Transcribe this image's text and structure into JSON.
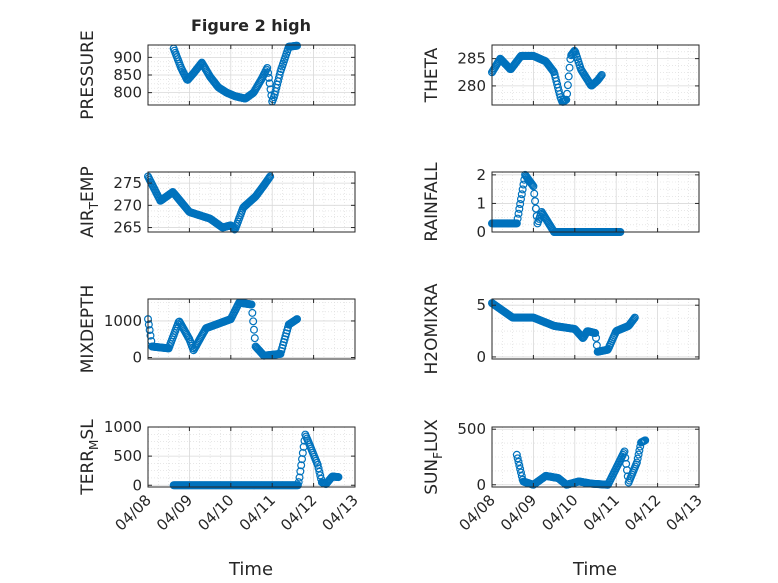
{
  "figure": {
    "title": "Figure 2 high",
    "x_axis_label": "Time",
    "x_tick_labels": [
      "04/08",
      "04/09",
      "04/10",
      "04/11",
      "04/12",
      "04/13"
    ]
  },
  "colors": {
    "marker": "#0072bd",
    "axis": "#262626",
    "grid": "#d9d9d9",
    "background": "#ffffff"
  },
  "chart_data": [
    {
      "type": "scatter",
      "ylabel": "PRESSURE",
      "xlim": [
        0,
        5
      ],
      "ylim": [
        765,
        935
      ],
      "yticks": [
        800,
        850,
        900
      ],
      "grid": true,
      "marker": "circle-open",
      "anchors": [
        [
          0.62,
          925
        ],
        [
          0.8,
          870
        ],
        [
          0.95,
          835
        ],
        [
          1.1,
          855
        ],
        [
          1.3,
          885
        ],
        [
          1.5,
          845
        ],
        [
          1.7,
          815
        ],
        [
          1.9,
          800
        ],
        [
          2.1,
          790
        ],
        [
          2.35,
          783
        ],
        [
          2.55,
          800
        ],
        [
          2.75,
          840
        ],
        [
          2.88,
          870
        ],
        [
          2.93,
          835
        ],
        [
          3.0,
          775
        ],
        [
          3.05,
          790
        ],
        [
          3.2,
          860
        ],
        [
          3.4,
          930
        ],
        [
          3.6,
          933
        ]
      ]
    },
    {
      "type": "scatter",
      "ylabel": "THETA",
      "xlim": [
        0,
        5
      ],
      "ylim": [
        276.5,
        287.5
      ],
      "yticks": [
        280,
        285
      ],
      "grid": true,
      "marker": "circle-open",
      "anchors": [
        [
          0.0,
          282.5
        ],
        [
          0.2,
          285.0
        ],
        [
          0.45,
          283.0
        ],
        [
          0.7,
          285.5
        ],
        [
          1.0,
          285.5
        ],
        [
          1.3,
          284.5
        ],
        [
          1.5,
          282.5
        ],
        [
          1.65,
          278.0
        ],
        [
          1.7,
          277.0
        ],
        [
          1.8,
          277.5
        ],
        [
          1.9,
          285.5
        ],
        [
          2.0,
          286.5
        ],
        [
          2.15,
          283.0
        ],
        [
          2.4,
          280.0
        ],
        [
          2.55,
          281.0
        ],
        [
          2.65,
          282.0
        ]
      ]
    },
    {
      "type": "scatter",
      "ylabel": "AIR_TEMP",
      "xlim": [
        0,
        5
      ],
      "ylim": [
        264,
        277.5
      ],
      "yticks": [
        265,
        270,
        275
      ],
      "grid": true,
      "marker": "circle-open",
      "anchors": [
        [
          0.0,
          276.5
        ],
        [
          0.3,
          271.0
        ],
        [
          0.6,
          273.0
        ],
        [
          1.0,
          268.5
        ],
        [
          1.5,
          267.0
        ],
        [
          1.8,
          265.0
        ],
        [
          2.0,
          265.5
        ],
        [
          2.1,
          264.5
        ],
        [
          2.3,
          269.5
        ],
        [
          2.6,
          272.0
        ],
        [
          2.8,
          274.5
        ],
        [
          2.95,
          276.5
        ]
      ]
    },
    {
      "type": "scatter",
      "ylabel": "RAINFALL",
      "xlim": [
        0,
        5
      ],
      "ylim": [
        0,
        2.1
      ],
      "yticks": [
        0,
        1,
        2
      ],
      "grid": true,
      "marker": "circle-open",
      "anchors": [
        [
          0.0,
          0.3
        ],
        [
          0.6,
          0.3
        ],
        [
          0.8,
          2.0
        ],
        [
          1.0,
          1.6
        ],
        [
          1.1,
          0.3
        ],
        [
          1.2,
          0.7
        ],
        [
          1.5,
          0.0
        ],
        [
          3.1,
          0.0
        ]
      ]
    },
    {
      "type": "scatter",
      "ylabel": "MIXDEPTH",
      "xlim": [
        0,
        5
      ],
      "ylim": [
        -40,
        1600
      ],
      "yticks": [
        0,
        1000
      ],
      "grid": true,
      "marker": "circle-open",
      "anchors": [
        [
          0.0,
          1050
        ],
        [
          0.1,
          300
        ],
        [
          0.5,
          250
        ],
        [
          0.75,
          1000
        ],
        [
          1.0,
          500
        ],
        [
          1.1,
          200
        ],
        [
          1.4,
          800
        ],
        [
          2.0,
          1050
        ],
        [
          2.2,
          1500
        ],
        [
          2.5,
          1450
        ],
        [
          2.6,
          300
        ],
        [
          2.8,
          50
        ],
        [
          3.2,
          100
        ],
        [
          3.4,
          900
        ],
        [
          3.6,
          1050
        ]
      ]
    },
    {
      "type": "scatter",
      "ylabel": "H2OMIXRA",
      "xlim": [
        0,
        5
      ],
      "ylim": [
        -0.2,
        5.6
      ],
      "yticks": [
        0,
        5
      ],
      "grid": true,
      "marker": "circle-open",
      "anchors": [
        [
          0.0,
          5.2
        ],
        [
          0.5,
          3.8
        ],
        [
          1.0,
          3.8
        ],
        [
          1.5,
          3.0
        ],
        [
          2.0,
          2.7
        ],
        [
          2.2,
          1.8
        ],
        [
          2.3,
          2.5
        ],
        [
          2.5,
          2.3
        ],
        [
          2.55,
          0.5
        ],
        [
          2.8,
          0.7
        ],
        [
          3.0,
          2.5
        ],
        [
          3.3,
          3.0
        ],
        [
          3.45,
          3.8
        ]
      ]
    },
    {
      "type": "scatter",
      "ylabel": "TERR_MSL",
      "xlim": [
        0,
        5
      ],
      "ylim": [
        -30,
        1000
      ],
      "yticks": [
        0,
        500,
        1000
      ],
      "grid": true,
      "marker": "circle-open",
      "anchors": [
        [
          0.62,
          0
        ],
        [
          3.62,
          0
        ],
        [
          3.65,
          80
        ],
        [
          3.8,
          870
        ],
        [
          3.9,
          700
        ],
        [
          4.1,
          350
        ],
        [
          4.2,
          50
        ],
        [
          4.3,
          20
        ],
        [
          4.45,
          150
        ],
        [
          4.6,
          140
        ]
      ]
    },
    {
      "type": "scatter",
      "ylabel": "SUN_FLUX",
      "xlim": [
        0,
        5
      ],
      "ylim": [
        -20,
        520
      ],
      "yticks": [
        0,
        500
      ],
      "grid": true,
      "marker": "circle-open",
      "anchors": [
        [
          0.6,
          270
        ],
        [
          0.75,
          30
        ],
        [
          1.0,
          0
        ],
        [
          1.3,
          80
        ],
        [
          1.6,
          60
        ],
        [
          1.8,
          0
        ],
        [
          2.1,
          30
        ],
        [
          2.4,
          10
        ],
        [
          2.8,
          0
        ],
        [
          3.0,
          150
        ],
        [
          3.2,
          300
        ],
        [
          3.3,
          20
        ],
        [
          3.5,
          200
        ],
        [
          3.6,
          380
        ],
        [
          3.7,
          400
        ]
      ]
    }
  ]
}
